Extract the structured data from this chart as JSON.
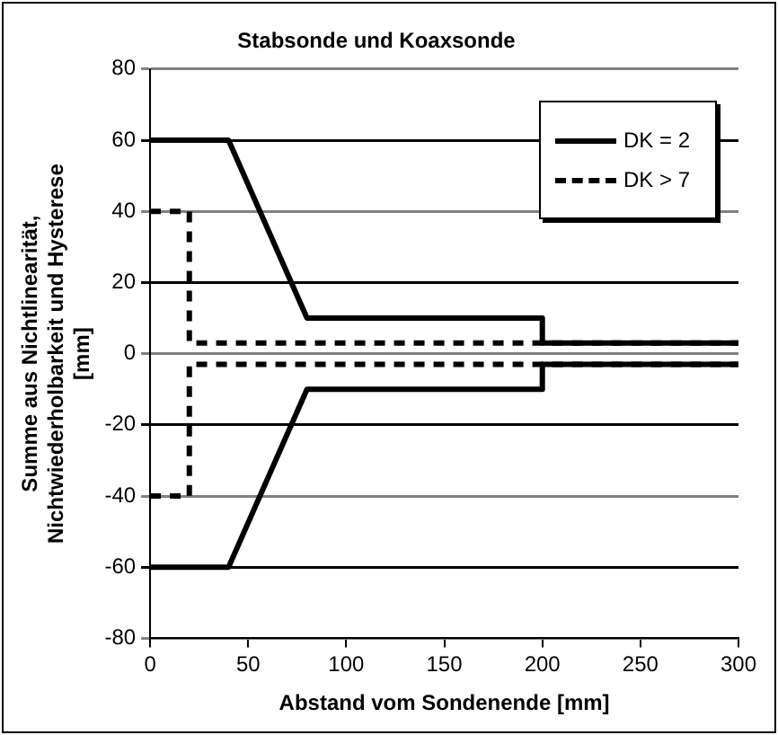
{
  "chart_data": {
    "type": "line",
    "title": "Stabsonde und Koaxsonde",
    "xlabel": "Abstand vom Sondenende [mm]",
    "ylabel": "Summe aus Nichtlinearität,\nNichtwiederholbarkeit und Hysterese\n[mm]",
    "xlim": [
      0,
      300
    ],
    "xticks": [
      0,
      50,
      100,
      150,
      200,
      250,
      300
    ],
    "ylim": [
      -80,
      80
    ],
    "yticks": [
      -80,
      -60,
      -40,
      -20,
      0,
      20,
      40,
      60,
      80
    ],
    "grid": "y",
    "legend": "top right",
    "marker": "none",
    "series": [
      {
        "name": "DK = 2",
        "color": "#000000",
        "line_style": "solid",
        "x": [
          0,
          40,
          80,
          200,
          200,
          300
        ],
        "values": [
          60,
          60,
          10,
          10,
          3,
          3
        ]
      },
      {
        "color": "#000000",
        "line_style": "solid",
        "x": [
          0,
          40,
          80,
          200,
          200,
          300
        ],
        "values": [
          -60,
          -60,
          -10,
          -10,
          -3,
          -3
        ]
      },
      {
        "name": "DK > 7",
        "color": "#000000",
        "line_style": "dashed",
        "x": [
          0,
          20,
          20,
          300
        ],
        "values": [
          40,
          40,
          3,
          3
        ]
      },
      {
        "color": "#000000",
        "line_style": "dashed",
        "x": [
          0,
          20,
          20,
          300
        ],
        "values": [
          -40,
          -40,
          -3,
          -3
        ]
      }
    ]
  }
}
